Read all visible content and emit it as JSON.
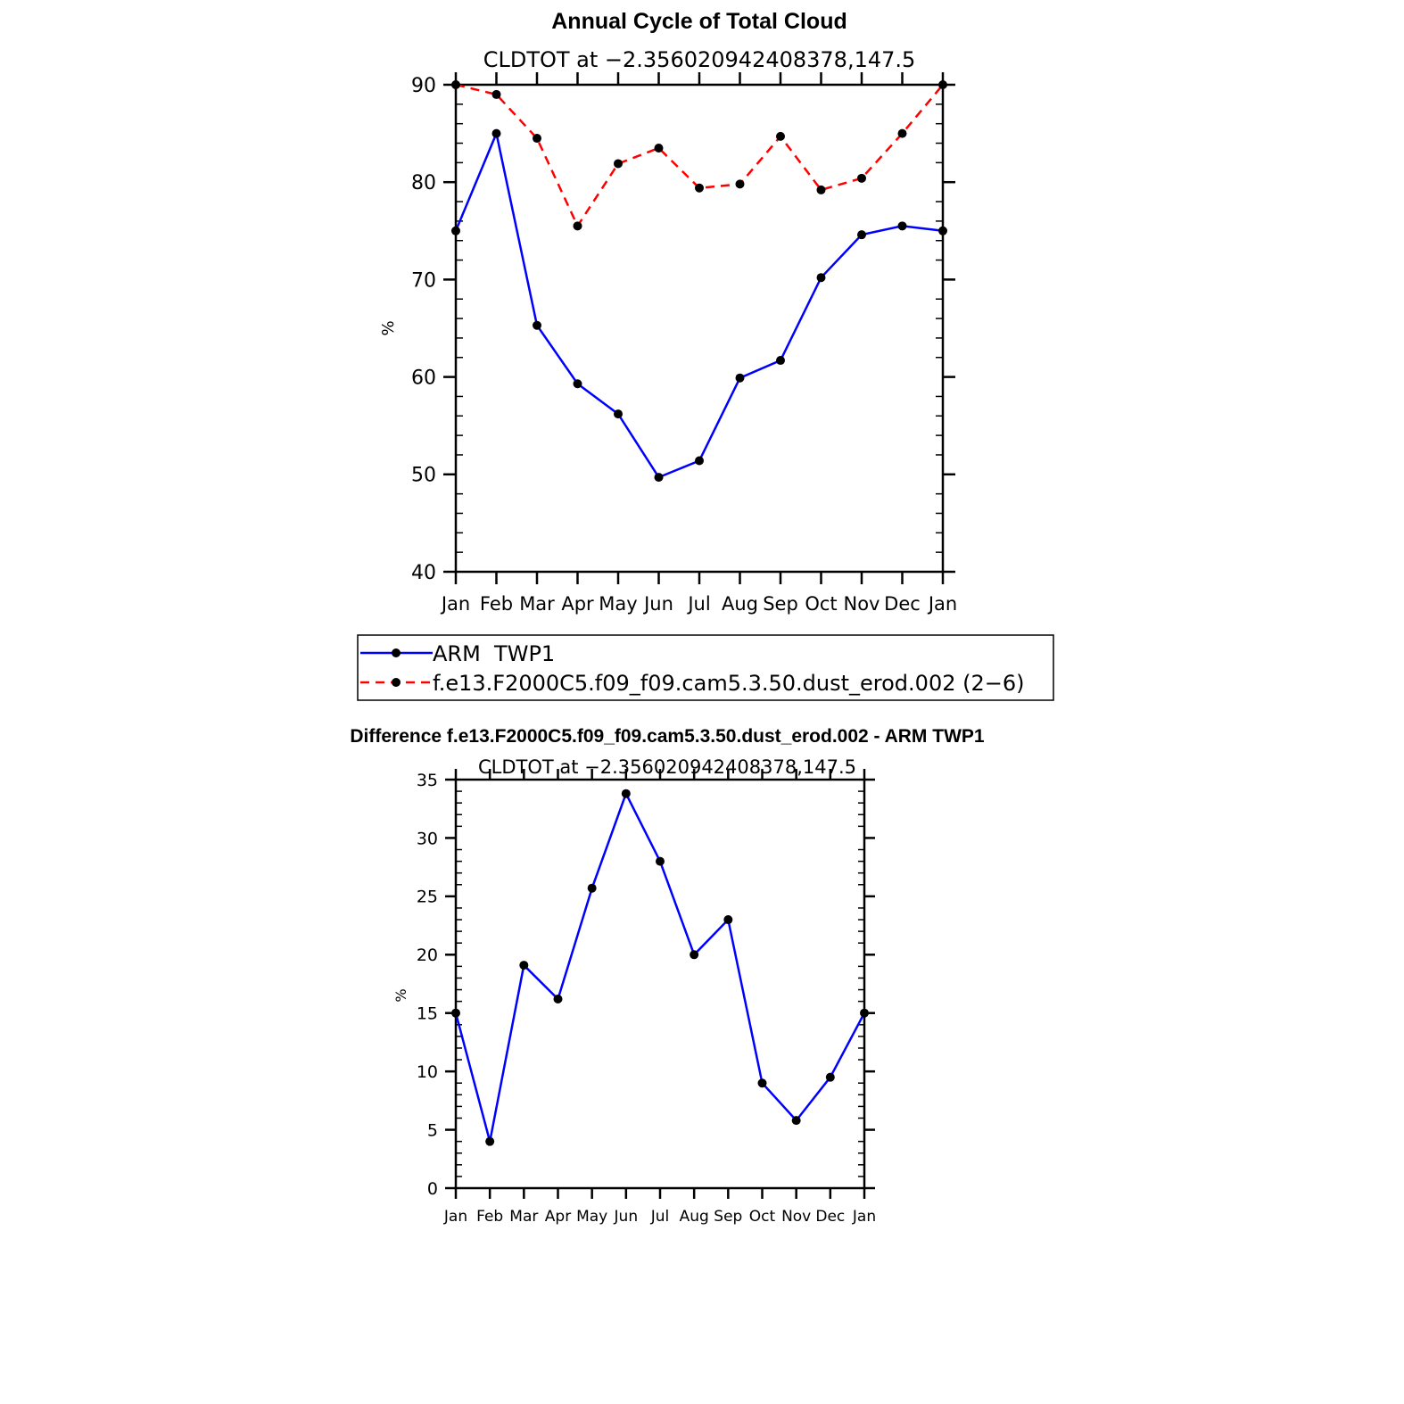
{
  "chart_data": [
    {
      "type": "line",
      "title": "Annual Cycle of Total Cloud",
      "subtitle": "CLDTOT at −2.356020942408378,147.5",
      "ylabel": "%",
      "xlabel": "",
      "ylim": [
        40,
        90
      ],
      "yticks": [
        "40",
        "50",
        "60",
        "70",
        "80",
        "90"
      ],
      "categories": [
        "Jan",
        "Feb",
        "Mar",
        "Apr",
        "May",
        "Jun",
        "Jul",
        "Aug",
        "Sep",
        "Oct",
        "Nov",
        "Dec",
        "Jan"
      ],
      "series": [
        {
          "name": "ARM  TWP1",
          "color": "#0000ff",
          "dash": "solid",
          "values": [
            75.0,
            85.0,
            65.3,
            59.3,
            56.2,
            49.7,
            51.4,
            59.9,
            61.7,
            70.2,
            74.6,
            75.5,
            75.0
          ]
        },
        {
          "name": "f.e13.F2000C5.f09_f09.cam5.3.50.dust_erod.002 (2−6)",
          "color": "#ff0000",
          "dash": "dashed",
          "values": [
            90.0,
            89.0,
            84.5,
            75.5,
            81.9,
            83.5,
            79.4,
            79.8,
            84.7,
            79.2,
            80.4,
            85.0,
            90.0
          ]
        }
      ],
      "legend_position": "below"
    },
    {
      "type": "line",
      "title": "Difference f.e13.F2000C5.f09_f09.cam5.3.50.dust_erod.002 - ARM TWP1",
      "subtitle": "CLDTOT at −2.356020942408378,147.5",
      "ylabel": "%",
      "xlabel": "",
      "ylim": [
        0,
        35
      ],
      "yticks": [
        "0",
        "5",
        "10",
        "15",
        "20",
        "25",
        "30",
        "35"
      ],
      "categories": [
        "Jan",
        "Feb",
        "Mar",
        "Apr",
        "May",
        "Jun",
        "Jul",
        "Aug",
        "Sep",
        "Oct",
        "Nov",
        "Dec",
        "Jan"
      ],
      "series": [
        {
          "name": "Difference",
          "color": "#0000ff",
          "dash": "solid",
          "values": [
            15.0,
            4.0,
            19.1,
            16.2,
            25.7,
            33.8,
            28.0,
            20.0,
            23.0,
            9.0,
            5.8,
            9.5,
            15.0
          ]
        }
      ]
    }
  ]
}
